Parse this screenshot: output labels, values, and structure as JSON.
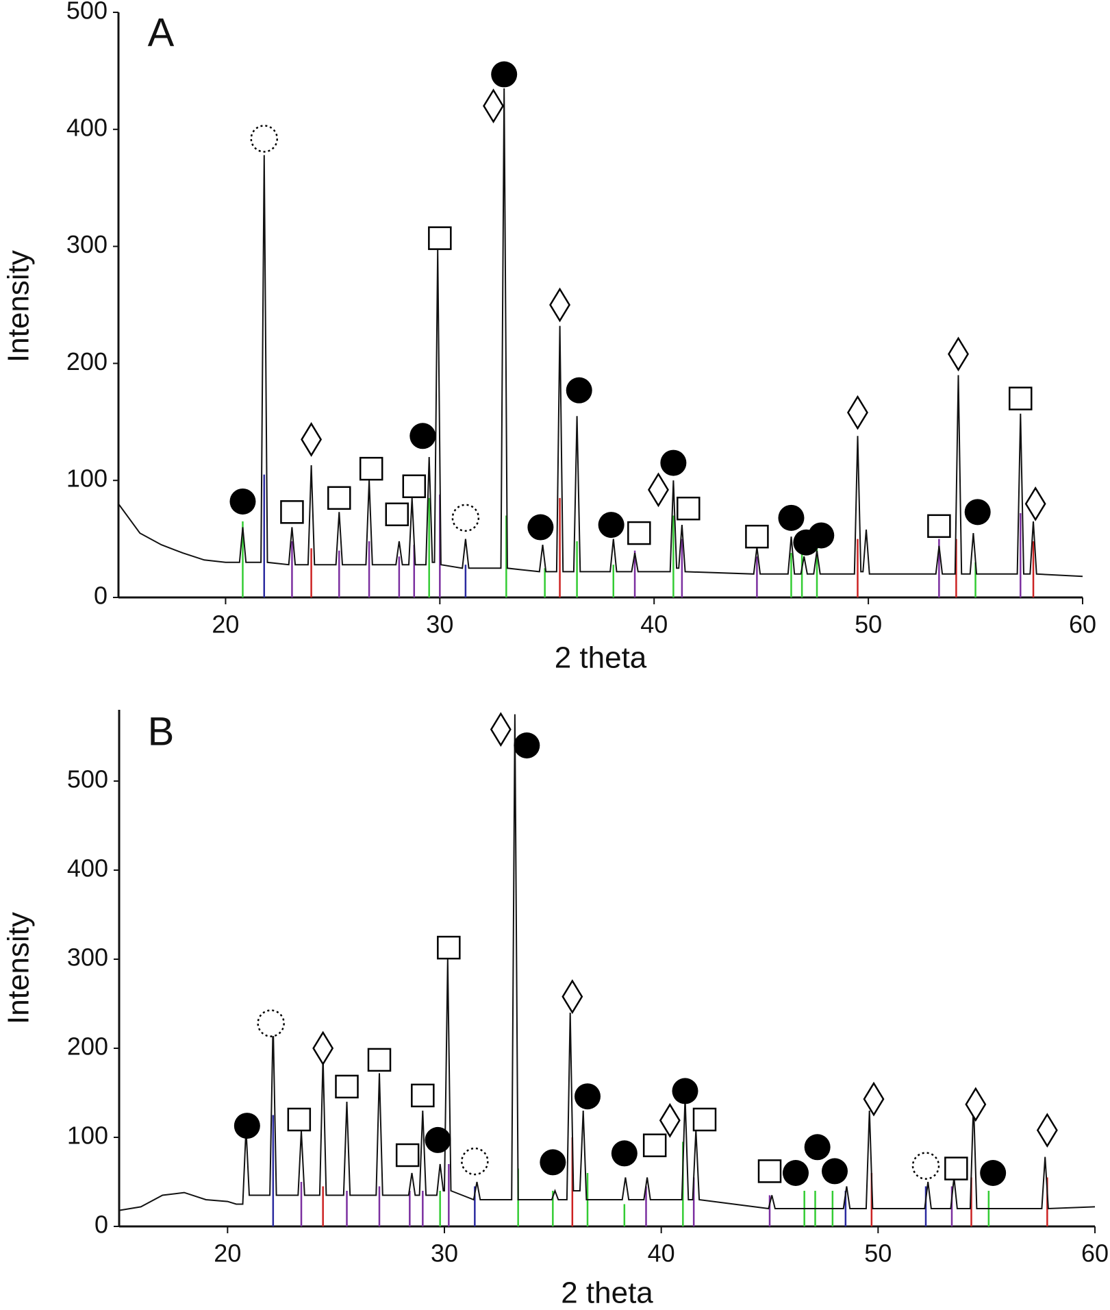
{
  "chart_data": [
    {
      "type": "line",
      "panel_label": "A",
      "x_label": "2 theta",
      "y_label": "Intensity",
      "xlim": [
        15,
        60
      ],
      "ylim": [
        0,
        500
      ],
      "xticks": [
        20,
        30,
        40,
        50,
        60
      ],
      "yticks": [
        0,
        100,
        200,
        300,
        400,
        500
      ],
      "series": [
        {
          "color": "#111111",
          "x": [
            15,
            16,
            17,
            18,
            19,
            20,
            20.65,
            20.8,
            20.95,
            21.65,
            21.8,
            21.95,
            22.95,
            23.1,
            23.25,
            23.85,
            24.0,
            24.15,
            25.15,
            25.3,
            25.45,
            26.55,
            26.7,
            26.85,
            27.95,
            28.1,
            28.25,
            28.55,
            28.7,
            28.85,
            29.35,
            29.5,
            29.65,
            29.75,
            29.9,
            30.05,
            31.05,
            31.2,
            31.35,
            32.85,
            33.0,
            33.15,
            34.65,
            34.8,
            34.95,
            35.45,
            35.6,
            35.75,
            36.25,
            36.4,
            36.55,
            37.95,
            38.1,
            38.25,
            38.95,
            39.1,
            39.25,
            40.75,
            40.9,
            41.05,
            41.15,
            41.3,
            41.45,
            44.65,
            44.8,
            44.95,
            46.25,
            46.4,
            46.55,
            46.85,
            47.0,
            47.15,
            47.45,
            47.6,
            47.75,
            49.35,
            49.5,
            49.65,
            49.75,
            49.9,
            50.05,
            53.15,
            53.3,
            53.45,
            54.05,
            54.2,
            54.35,
            54.75,
            54.9,
            55.05,
            56.95,
            57.1,
            57.25,
            57.55,
            57.7,
            57.85,
            60
          ],
          "values": [
            80,
            55,
            45,
            38,
            32,
            30,
            30,
            60,
            30,
            30,
            378,
            30,
            28,
            60,
            28,
            28,
            113,
            28,
            28,
            73,
            28,
            28,
            100,
            28,
            28,
            48,
            28,
            28,
            85,
            28,
            28,
            120,
            30,
            30,
            297,
            28,
            25,
            50,
            25,
            25,
            435,
            25,
            22,
            45,
            22,
            22,
            232,
            22,
            22,
            155,
            22,
            22,
            50,
            22,
            22,
            38,
            22,
            22,
            100,
            25,
            25,
            62,
            22,
            20,
            43,
            20,
            20,
            52,
            20,
            20,
            35,
            20,
            20,
            40,
            20,
            20,
            138,
            22,
            22,
            58,
            20,
            20,
            44,
            20,
            20,
            190,
            20,
            20,
            55,
            20,
            20,
            157,
            20,
            20,
            65,
            20,
            18
          ]
        }
      ],
      "reference_lines": [
        {
          "color": "#33cc33",
          "x": [
            20.8,
            29.5,
            33.1,
            34.9,
            36.4,
            38.1,
            40.9,
            46.4,
            46.9,
            47.6,
            55.0
          ],
          "values": [
            65,
            85,
            70,
            25,
            48,
            28,
            70,
            38,
            38,
            45,
            30
          ]
        },
        {
          "color": "#2a2aa0",
          "x": [
            21.8,
            31.2
          ],
          "values": [
            105,
            28
          ]
        },
        {
          "color": "#7b2fa0",
          "x": [
            23.1,
            25.3,
            26.7,
            28.1,
            28.8,
            30.0,
            39.1,
            41.3,
            44.8,
            53.3,
            57.1
          ],
          "values": [
            48,
            40,
            48,
            35,
            45,
            88,
            40,
            50,
            35,
            50,
            72
          ]
        },
        {
          "color": "#cc2222",
          "x": [
            24.0,
            35.6,
            49.5,
            54.1,
            57.7
          ],
          "values": [
            42,
            85,
            50,
            50,
            48
          ]
        }
      ],
      "markers": [
        {
          "shape": "circle",
          "x": 20.8,
          "y": 82
        },
        {
          "shape": "dotted-circle",
          "x": 21.8,
          "y": 392
        },
        {
          "shape": "square",
          "x": 23.1,
          "y": 73
        },
        {
          "shape": "diamond",
          "x": 24.0,
          "y": 135
        },
        {
          "shape": "square",
          "x": 25.3,
          "y": 85
        },
        {
          "shape": "square",
          "x": 26.8,
          "y": 110
        },
        {
          "shape": "square",
          "x": 28.0,
          "y": 71
        },
        {
          "shape": "square",
          "x": 28.8,
          "y": 95
        },
        {
          "shape": "circle",
          "x": 29.2,
          "y": 138
        },
        {
          "shape": "square",
          "x": 30.0,
          "y": 307
        },
        {
          "shape": "dotted-circle",
          "x": 31.2,
          "y": 68
        },
        {
          "shape": "diamond",
          "x": 32.5,
          "y": 420
        },
        {
          "shape": "circle",
          "x": 33.0,
          "y": 447
        },
        {
          "shape": "circle",
          "x": 34.7,
          "y": 60
        },
        {
          "shape": "diamond",
          "x": 35.6,
          "y": 250
        },
        {
          "shape": "circle",
          "x": 36.5,
          "y": 177
        },
        {
          "shape": "circle",
          "x": 38.0,
          "y": 62
        },
        {
          "shape": "square",
          "x": 39.3,
          "y": 55
        },
        {
          "shape": "diamond",
          "x": 40.2,
          "y": 92
        },
        {
          "shape": "circle",
          "x": 40.9,
          "y": 115
        },
        {
          "shape": "square",
          "x": 41.6,
          "y": 76
        },
        {
          "shape": "square",
          "x": 44.8,
          "y": 52
        },
        {
          "shape": "circle",
          "x": 46.4,
          "y": 68
        },
        {
          "shape": "circle",
          "x": 47.1,
          "y": 47
        },
        {
          "shape": "circle",
          "x": 47.8,
          "y": 53
        },
        {
          "shape": "diamond",
          "x": 49.5,
          "y": 158
        },
        {
          "shape": "square",
          "x": 53.3,
          "y": 61
        },
        {
          "shape": "diamond",
          "x": 54.2,
          "y": 208
        },
        {
          "shape": "circle",
          "x": 55.1,
          "y": 73
        },
        {
          "shape": "square",
          "x": 57.1,
          "y": 170
        },
        {
          "shape": "diamond",
          "x": 57.8,
          "y": 80
        }
      ]
    },
    {
      "type": "line",
      "panel_label": "B",
      "x_label": "2 theta",
      "y_label": "Intensity",
      "xlim": [
        15,
        60
      ],
      "ylim": [
        0,
        580
      ],
      "xticks": [
        20,
        30,
        40,
        50,
        60
      ],
      "yticks": [
        0,
        100,
        200,
        300,
        400,
        500
      ],
      "series": [
        {
          "color": "#111111",
          "x": [
            15,
            16,
            17,
            18,
            19,
            20,
            20.4,
            20.7,
            20.85,
            21.0,
            21.95,
            22.1,
            22.25,
            23.25,
            23.4,
            23.55,
            24.25,
            24.4,
            24.55,
            25.35,
            25.5,
            25.65,
            26.85,
            27.0,
            27.15,
            28.35,
            28.5,
            28.65,
            28.85,
            29.0,
            29.15,
            29.65,
            29.8,
            29.95,
            30.0,
            30.15,
            30.3,
            31.35,
            31.5,
            31.65,
            33.1,
            33.25,
            33.4,
            34.95,
            35.1,
            35.25,
            35.65,
            35.8,
            35.95,
            36.25,
            36.4,
            36.55,
            38.2,
            38.35,
            38.5,
            39.2,
            39.35,
            39.5,
            40.95,
            41.1,
            41.25,
            41.45,
            41.6,
            41.75,
            44.95,
            45.1,
            45.25,
            48.4,
            48.55,
            48.7,
            49.45,
            49.6,
            49.75,
            52.15,
            52.3,
            52.45,
            53.35,
            53.5,
            53.65,
            54.25,
            54.4,
            54.55,
            57.55,
            57.7,
            57.85,
            60
          ],
          "values": [
            18,
            22,
            35,
            38,
            30,
            28,
            25,
            25,
            110,
            35,
            35,
            230,
            35,
            35,
            107,
            35,
            35,
            190,
            35,
            35,
            140,
            35,
            35,
            172,
            35,
            35,
            60,
            35,
            35,
            130,
            35,
            35,
            70,
            40,
            40,
            300,
            40,
            30,
            50,
            30,
            30,
            575,
            30,
            30,
            40,
            30,
            30,
            240,
            40,
            40,
            130,
            30,
            30,
            55,
            30,
            30,
            55,
            30,
            30,
            145,
            30,
            30,
            108,
            30,
            20,
            35,
            20,
            20,
            45,
            20,
            20,
            130,
            20,
            20,
            50,
            20,
            20,
            55,
            20,
            20,
            140,
            20,
            20,
            78,
            20,
            22
          ]
        }
      ],
      "reference_lines": [
        {
          "color": "#33cc33",
          "x": [
            29.8,
            33.4,
            35.0,
            36.6,
            38.3,
            41.0,
            46.6,
            47.1,
            47.9,
            55.1
          ],
          "values": [
            40,
            65,
            40,
            60,
            25,
            95,
            40,
            40,
            40,
            40
          ]
        },
        {
          "color": "#2a2aa0",
          "x": [
            22.1,
            31.4,
            48.5,
            52.2
          ],
          "values": [
            125,
            45,
            40,
            45
          ]
        },
        {
          "color": "#7b2fa0",
          "x": [
            23.4,
            25.5,
            27.0,
            28.4,
            29.0,
            30.2,
            39.3,
            41.5,
            45.0,
            53.4
          ],
          "values": [
            50,
            40,
            45,
            40,
            40,
            70,
            45,
            55,
            35,
            45
          ]
        },
        {
          "color": "#cc2222",
          "x": [
            24.4,
            35.9,
            49.7,
            54.3,
            57.8
          ],
          "values": [
            45,
            100,
            60,
            55,
            55
          ]
        }
      ],
      "markers": [
        {
          "shape": "circle",
          "x": 20.9,
          "y": 113
        },
        {
          "shape": "dotted-circle",
          "x": 22.0,
          "y": 228
        },
        {
          "shape": "square",
          "x": 23.3,
          "y": 120
        },
        {
          "shape": "diamond",
          "x": 24.4,
          "y": 200
        },
        {
          "shape": "square",
          "x": 25.5,
          "y": 157
        },
        {
          "shape": "square",
          "x": 27.0,
          "y": 187
        },
        {
          "shape": "square",
          "x": 28.3,
          "y": 80
        },
        {
          "shape": "square",
          "x": 29.0,
          "y": 147
        },
        {
          "shape": "circle",
          "x": 29.7,
          "y": 97
        },
        {
          "shape": "square",
          "x": 30.2,
          "y": 313
        },
        {
          "shape": "dotted-circle",
          "x": 31.4,
          "y": 73
        },
        {
          "shape": "diamond",
          "x": 32.6,
          "y": 558
        },
        {
          "shape": "circle",
          "x": 33.8,
          "y": 540
        },
        {
          "shape": "circle",
          "x": 35.0,
          "y": 72
        },
        {
          "shape": "diamond",
          "x": 35.9,
          "y": 258
        },
        {
          "shape": "circle",
          "x": 36.6,
          "y": 146
        },
        {
          "shape": "circle",
          "x": 38.3,
          "y": 82
        },
        {
          "shape": "square",
          "x": 39.7,
          "y": 91
        },
        {
          "shape": "diamond",
          "x": 40.4,
          "y": 119
        },
        {
          "shape": "circle",
          "x": 41.1,
          "y": 152
        },
        {
          "shape": "square",
          "x": 42.0,
          "y": 120
        },
        {
          "shape": "square",
          "x": 45.0,
          "y": 62
        },
        {
          "shape": "circle",
          "x": 46.2,
          "y": 60
        },
        {
          "shape": "circle",
          "x": 47.2,
          "y": 89
        },
        {
          "shape": "circle",
          "x": 48.0,
          "y": 62
        },
        {
          "shape": "diamond",
          "x": 49.8,
          "y": 143
        },
        {
          "shape": "dotted-circle",
          "x": 52.2,
          "y": 68
        },
        {
          "shape": "square",
          "x": 53.6,
          "y": 65
        },
        {
          "shape": "diamond",
          "x": 54.5,
          "y": 137
        },
        {
          "shape": "circle",
          "x": 55.3,
          "y": 60
        },
        {
          "shape": "diamond",
          "x": 57.8,
          "y": 108
        }
      ]
    }
  ]
}
